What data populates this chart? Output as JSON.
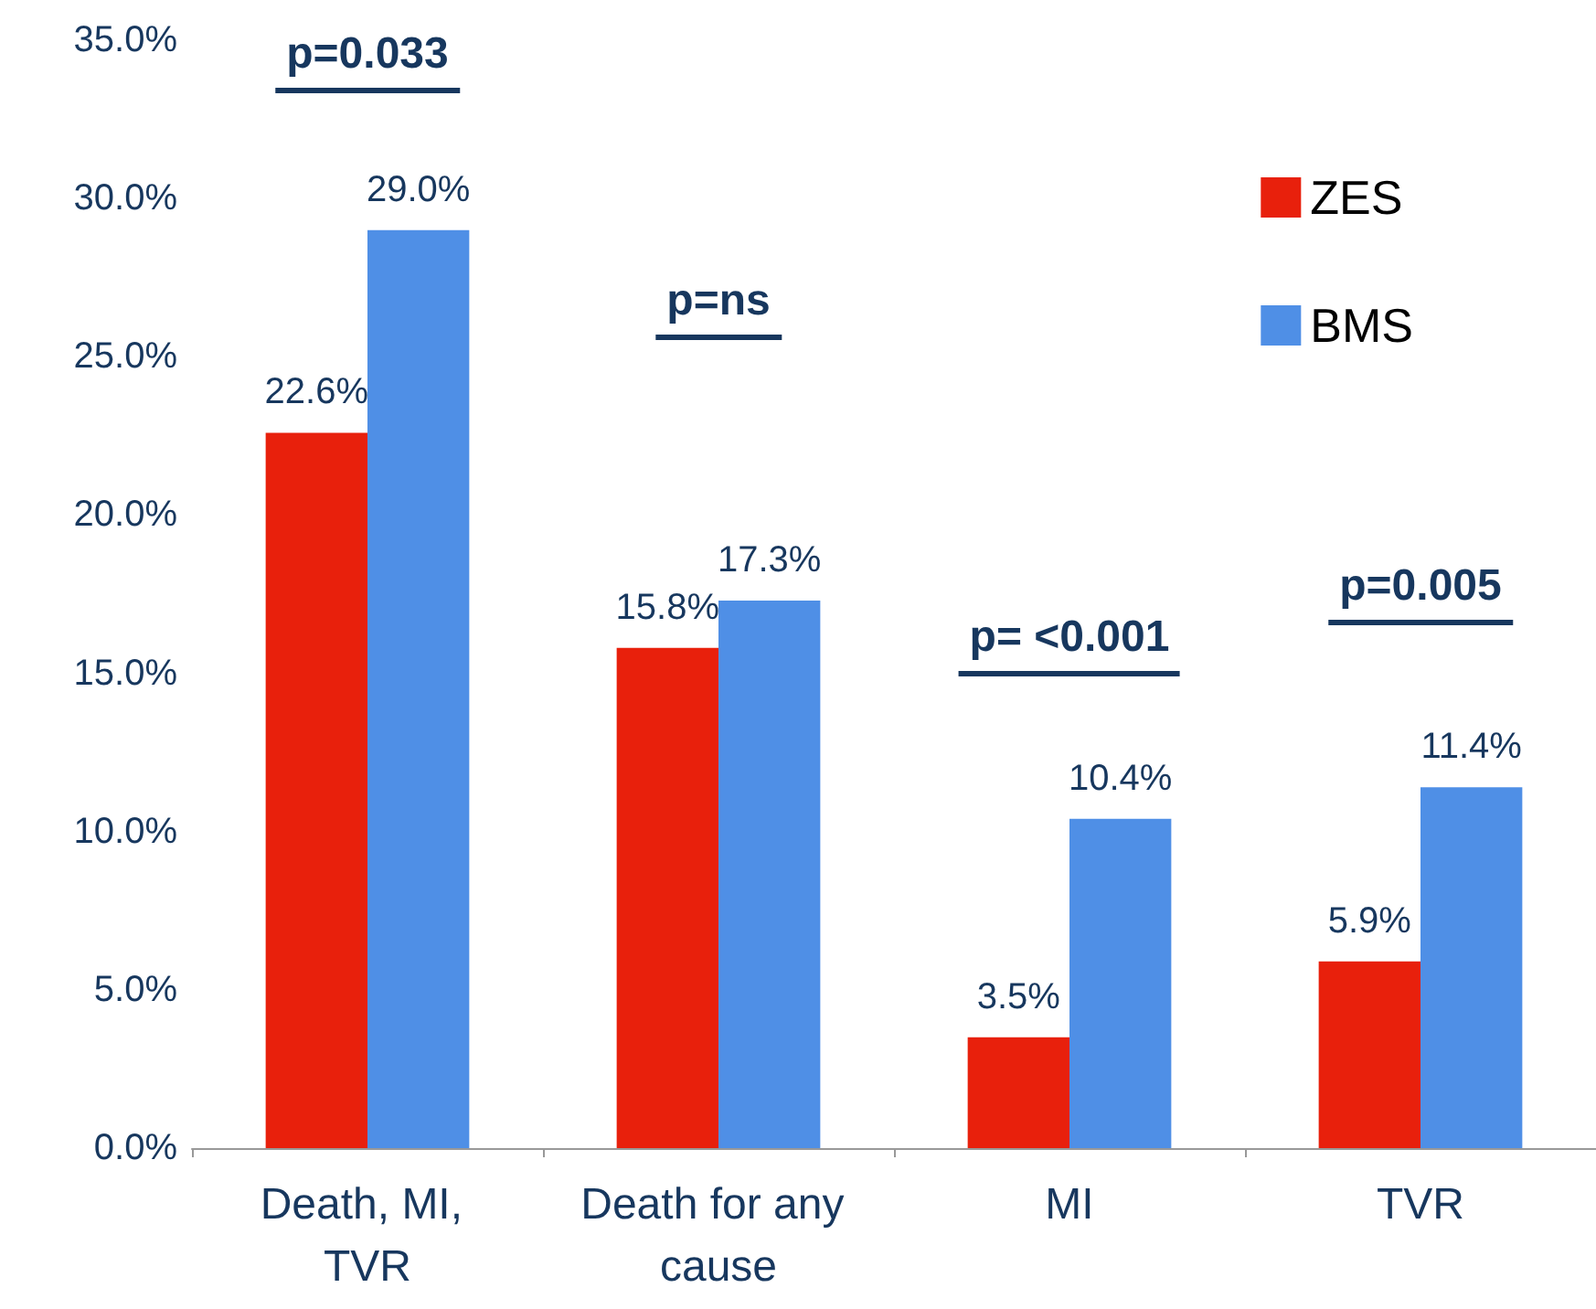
{
  "chart_data": {
    "type": "bar",
    "categories": [
      "Death, MI, TVR",
      "Death for any cause",
      "MI",
      "TVR"
    ],
    "series": [
      {
        "name": "ZES",
        "color": "#e8200c",
        "values": [
          22.6,
          15.8,
          3.5,
          5.9
        ],
        "value_labels": [
          "22.6%",
          "15.8%",
          "3.5%",
          "5.9%"
        ]
      },
      {
        "name": "BMS",
        "color": "#4f8fe6",
        "values": [
          29.0,
          17.3,
          10.4,
          11.4
        ],
        "value_labels": [
          "29.0%",
          "17.3%",
          "10.4%",
          "11.4%"
        ]
      }
    ],
    "ylim": [
      0,
      35
    ],
    "yticks": [
      {
        "value": 0,
        "label": "0.0%"
      },
      {
        "value": 5,
        "label": "5.0%"
      },
      {
        "value": 10,
        "label": "10.0%"
      },
      {
        "value": 15,
        "label": "15.0%"
      },
      {
        "value": 20,
        "label": "20.0%"
      },
      {
        "value": 25,
        "label": "25.0%"
      },
      {
        "value": 30,
        "label": "30.0%"
      },
      {
        "value": 35,
        "label": "35.0%"
      }
    ],
    "annotations": [
      "p=0.033",
      "p=ns",
      "p= <0.001",
      "p=0.005"
    ],
    "legend": "top right",
    "grid": false
  }
}
